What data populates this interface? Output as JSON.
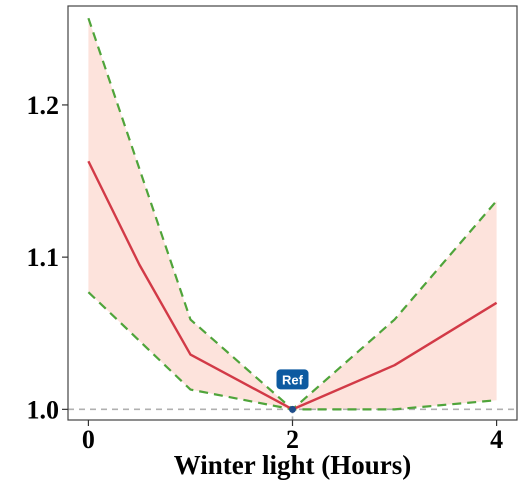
{
  "chart_data": {
    "type": "line",
    "title": "",
    "xlabel": "Winter light (Hours)",
    "ylabel": "",
    "xlim": [
      -0.2,
      4.2
    ],
    "ylim": [
      0.993,
      1.265
    ],
    "x_ticks": [
      0,
      2,
      4
    ],
    "y_ticks": [
      1.0,
      1.1,
      1.2
    ],
    "x_tick_labels": [
      "0",
      "2",
      "4"
    ],
    "y_tick_labels": [
      "1.0",
      "1.1",
      "1.2"
    ],
    "reference_line_y": 1.0,
    "reference_point": {
      "x": 2,
      "y": 1.0,
      "label": "Ref"
    },
    "series": [
      {
        "role": "estimate",
        "x": [
          0,
          0.5,
          1,
          2,
          3,
          4
        ],
        "y": [
          1.163,
          1.095,
          1.036,
          1.0,
          1.029,
          1.07
        ],
        "color": "#d23a47"
      },
      {
        "role": "upper",
        "x": [
          0,
          1,
          2,
          3,
          4
        ],
        "y": [
          1.257,
          1.059,
          1.0,
          1.059,
          1.137
        ],
        "color": "#4fa43a"
      },
      {
        "role": "lower",
        "x": [
          0,
          1,
          2,
          3,
          4
        ],
        "y": [
          1.077,
          1.013,
          1.0,
          1.0,
          1.006
        ],
        "color": "#4fa43a"
      }
    ],
    "band_color": "#fde3dc",
    "grid": false
  }
}
